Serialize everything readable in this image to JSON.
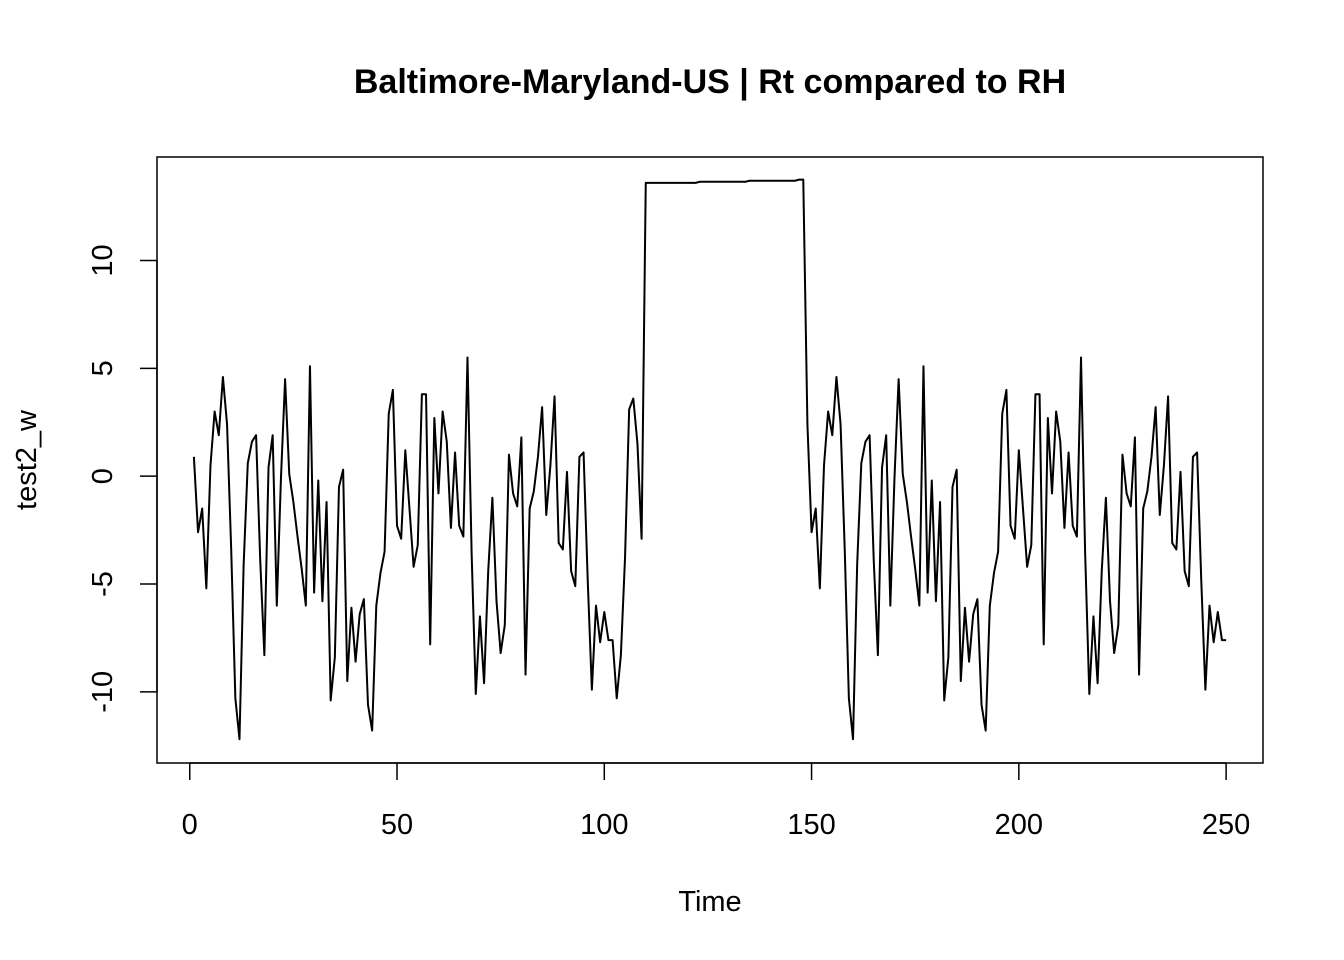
{
  "chart_data": {
    "type": "line",
    "title": "Baltimore-Maryland-US | Rt compared to RH",
    "xlabel": "Time",
    "ylabel": "test2_w",
    "xlim": [
      -7.9,
      258.9
    ],
    "ylim": [
      -13.3,
      14.8
    ],
    "xticks": [
      0,
      50,
      100,
      150,
      200,
      250
    ],
    "yticks": [
      -10,
      -5,
      0,
      5,
      10
    ],
    "grid": false,
    "legend": "none",
    "line_color": "#000000",
    "series": [
      {
        "x_start": 1,
        "values": [
          0.9,
          -2.6,
          -1.5,
          -5.2,
          0.5,
          3.0,
          1.9,
          4.6,
          2.4,
          -3.4,
          -10.3,
          -12.2,
          -4.1,
          0.6,
          1.6,
          1.9,
          -3.9,
          -8.3,
          0.4,
          1.9,
          -6.0,
          -0.1,
          4.5,
          0.1,
          -1.2,
          -2.8,
          -4.3,
          -6.0,
          5.1,
          -5.4,
          -0.2,
          -5.8,
          -1.2,
          -10.4,
          -8.4,
          -0.5,
          0.3,
          -9.5,
          -6.1,
          -8.6,
          -6.4,
          -5.7,
          -10.6,
          -11.8,
          -6.0,
          -4.5,
          -3.5,
          2.9,
          4.0,
          -2.3,
          -2.9,
          1.2,
          -1.5,
          -4.2,
          -3.2,
          3.8,
          3.8,
          -7.8,
          2.7,
          -0.8,
          3.0,
          1.6,
          -2.4,
          1.1,
          -2.3,
          -2.8,
          5.5,
          -3.6,
          -10.1,
          -6.5,
          -9.6,
          -4.4,
          -1.0,
          -5.8,
          -8.2,
          -6.9,
          1.0,
          -0.8,
          -1.4,
          1.8,
          -9.2,
          -1.5,
          -0.7,
          0.9,
          3.2,
          -1.8,
          0.5,
          3.7,
          -3.1,
          -3.4,
          0.2,
          -4.4,
          -5.1,
          0.9,
          1.1,
          -4.8,
          -9.9,
          -6.0,
          -7.7,
          -6.3,
          -7.6,
          -7.6,
          -10.3,
          -8.3,
          -3.8,
          3.1,
          3.6,
          1.5,
          -2.9,
          13.6,
          13.6,
          13.6,
          13.6,
          13.6,
          13.6,
          13.6,
          13.6,
          13.6,
          13.6,
          13.6,
          13.6,
          13.6,
          13.65,
          13.65,
          13.65,
          13.65,
          13.65,
          13.65,
          13.65,
          13.65,
          13.65,
          13.65,
          13.65,
          13.65,
          13.7,
          13.7,
          13.7,
          13.7,
          13.7,
          13.7,
          13.7,
          13.7,
          13.7,
          13.7,
          13.7,
          13.7,
          13.75,
          13.75,
          2.4,
          -2.6,
          -1.5,
          -5.2,
          0.5,
          3.0,
          1.9,
          4.6,
          2.4,
          -3.4,
          -10.3,
          -12.2,
          -4.1,
          0.6,
          1.6,
          1.9,
          -3.9,
          -8.3,
          0.4,
          1.9,
          -6.0,
          -0.1,
          4.5,
          0.1,
          -1.2,
          -2.8,
          -4.3,
          -6.0,
          5.1,
          -5.4,
          -0.2,
          -5.8,
          -1.2,
          -10.4,
          -8.4,
          -0.5,
          0.3,
          -9.5,
          -6.1,
          -8.6,
          -6.4,
          -5.7,
          -10.6,
          -11.8,
          -6.0,
          -4.5,
          -3.5,
          2.9,
          4.0,
          -2.3,
          -2.9,
          1.2,
          -1.5,
          -4.2,
          -3.2,
          3.8,
          3.8,
          -7.8,
          2.7,
          -0.8,
          3.0,
          1.6,
          -2.4,
          1.1,
          -2.3,
          -2.8,
          5.5,
          -3.6,
          -10.1,
          -6.5,
          -9.6,
          -4.4,
          -1.0,
          -5.8,
          -8.2,
          -6.9,
          1.0,
          -0.8,
          -1.4,
          1.8,
          -9.2,
          -1.5,
          -0.7,
          0.9,
          3.2,
          -1.8,
          0.5,
          3.7,
          -3.1,
          -3.4,
          0.2,
          -4.4,
          -5.1,
          0.9,
          1.1,
          -4.8,
          -9.9,
          -6.0,
          -7.7,
          -6.3,
          -7.6,
          -7.6
        ]
      }
    ]
  }
}
